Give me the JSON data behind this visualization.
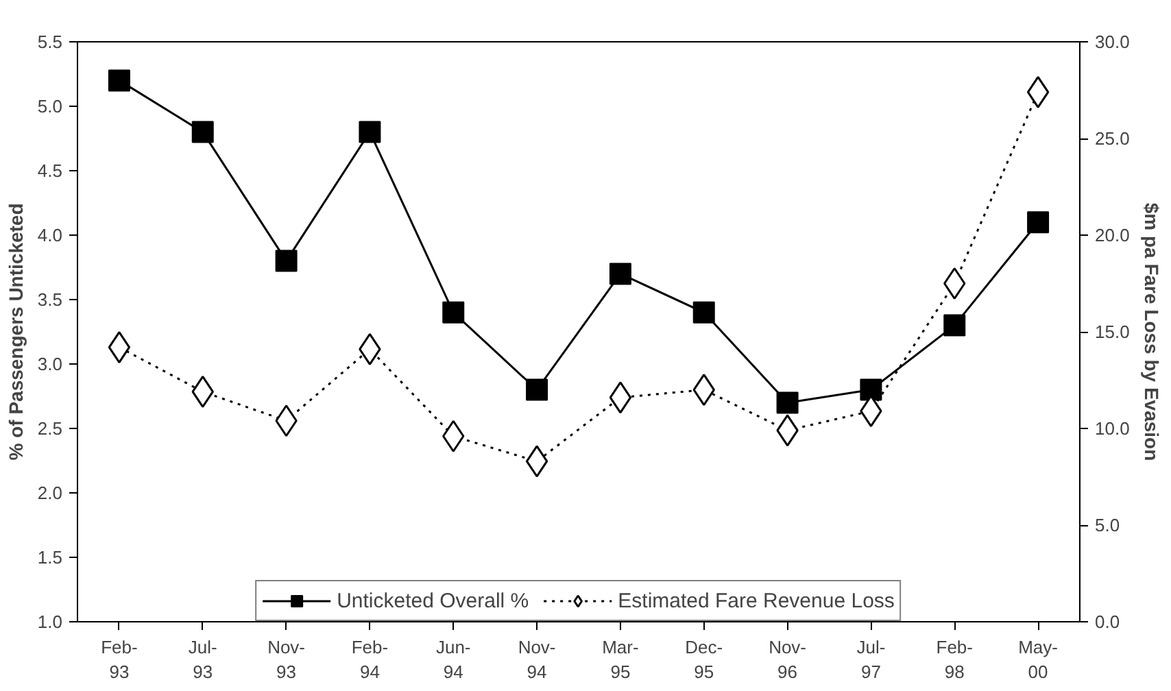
{
  "chart_data": {
    "type": "line",
    "categories": [
      "Feb-93",
      "Jul-93",
      "Nov-93",
      "Feb-94",
      "Jun-94",
      "Nov-94",
      "Mar-95",
      "Dec-95",
      "Nov-96",
      "Jul-97",
      "Feb-98",
      "May-00"
    ],
    "ylabel": "% of Passengers Unticketed",
    "y2label": "$m pa Fare Loss by Evasion",
    "series": [
      {
        "name": "Unticketed Overall %",
        "color": "#000000",
        "marker": "square",
        "line_style": "solid",
        "values": [
          5.2,
          4.8,
          3.8,
          4.8,
          3.4,
          2.8,
          3.7,
          3.4,
          2.7,
          2.8,
          3.3,
          4.1
        ]
      },
      {
        "name": "Estimated Fare Revenue Loss",
        "color": "#000000",
        "marker": "diamond",
        "line_style": "dotted",
        "axis": "y2",
        "values": [
          14.2,
          11.9,
          10.4,
          14.1,
          9.6,
          8.3,
          11.6,
          12.0,
          9.9,
          10.9,
          17.5,
          27.4
        ]
      }
    ],
    "ylim": [
      1.0,
      5.5
    ],
    "yticks": [
      {
        "value": 1.0,
        "label": "1.0"
      },
      {
        "value": 1.5,
        "label": "1.5"
      },
      {
        "value": 2.0,
        "label": "2.0"
      },
      {
        "value": 2.5,
        "label": "2.5"
      },
      {
        "value": 3.0,
        "label": "3.0"
      },
      {
        "value": 3.5,
        "label": "3.5"
      },
      {
        "value": 4.0,
        "label": "4.0"
      },
      {
        "value": 4.5,
        "label": "4.5"
      },
      {
        "value": 5.0,
        "label": "5.0"
      },
      {
        "value": 5.5,
        "label": "5.5"
      }
    ],
    "y2lim": [
      0,
      30
    ],
    "y2ticks": [
      {
        "value": 0,
        "label": "0.0"
      },
      {
        "value": 5,
        "label": "5.0"
      },
      {
        "value": 10,
        "label": "10.0"
      },
      {
        "value": 15,
        "label": "15.0"
      },
      {
        "value": 20,
        "label": "20.0"
      },
      {
        "value": 25,
        "label": "25.0"
      },
      {
        "value": 30,
        "label": "30.0"
      }
    ],
    "grid": false,
    "legend": "bottom"
  }
}
